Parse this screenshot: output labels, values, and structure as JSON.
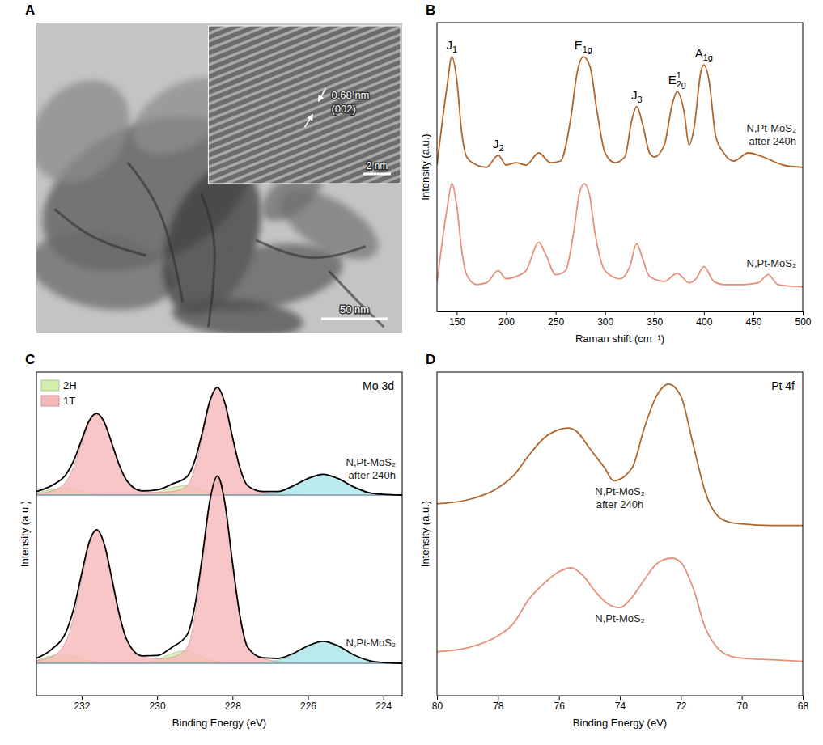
{
  "chart_data": [
    {
      "panel": "A",
      "type": "image",
      "annotations": [
        "0.68 nm",
        "(002)"
      ],
      "inset_scale_bar": "2 nm",
      "scale_bar": "50 nm"
    },
    {
      "panel": "B",
      "type": "line",
      "x_label": "Raman shift (cm⁻¹)",
      "y_label": "Intensity (a.u.)",
      "xlim": [
        130,
        500
      ],
      "xticks": [
        150,
        200,
        250,
        300,
        350,
        400,
        450,
        500
      ],
      "ylim": [
        0,
        1
      ],
      "tick_labels": "x",
      "series": [
        {
          "name": "N,Pt-MoS₂ after 240h",
          "color": "#b0652a",
          "x": [
            130,
            140,
            145,
            150,
            155,
            160,
            170,
            180,
            192,
            200,
            210,
            220,
            233,
            245,
            255,
            265,
            272,
            278,
            285,
            292,
            300,
            310,
            320,
            327,
            332,
            338,
            345,
            350,
            360,
            368,
            373,
            380,
            385,
            390,
            397,
            400,
            405,
            412,
            420,
            430,
            445,
            460,
            480,
            500
          ],
          "values": [
            0.507,
            0.775,
            0.882,
            0.803,
            0.62,
            0.535,
            0.507,
            0.499,
            0.541,
            0.507,
            0.515,
            0.507,
            0.549,
            0.515,
            0.521,
            0.662,
            0.831,
            0.882,
            0.845,
            0.69,
            0.549,
            0.515,
            0.535,
            0.662,
            0.71,
            0.648,
            0.549,
            0.535,
            0.577,
            0.718,
            0.761,
            0.69,
            0.577,
            0.634,
            0.831,
            0.854,
            0.803,
            0.606,
            0.549,
            0.521,
            0.549,
            0.535,
            0.507,
            0.499
          ]
        },
        {
          "name": "N,Pt-MoS₂",
          "color": "#e8907a",
          "x": [
            130,
            140,
            145,
            150,
            155,
            160,
            170,
            180,
            192,
            200,
            210,
            220,
            233,
            240,
            250,
            260,
            268,
            274,
            279,
            284,
            290,
            300,
            315,
            325,
            332,
            338,
            345,
            360,
            373,
            385,
            392,
            400,
            410,
            420,
            440,
            455,
            465,
            475,
            500
          ],
          "values": [
            0.099,
            0.352,
            0.442,
            0.366,
            0.211,
            0.127,
            0.093,
            0.099,
            0.141,
            0.113,
            0.121,
            0.141,
            0.239,
            0.197,
            0.127,
            0.141,
            0.268,
            0.408,
            0.442,
            0.408,
            0.268,
            0.141,
            0.113,
            0.155,
            0.234,
            0.183,
            0.121,
            0.104,
            0.132,
            0.099,
            0.113,
            0.155,
            0.104,
            0.093,
            0.093,
            0.099,
            0.127,
            0.093,
            0.085
          ]
        }
      ],
      "annotations": [
        {
          "text": "J",
          "sub": "1",
          "x": 145
        },
        {
          "text": "J",
          "sub": "2",
          "x": 192
        },
        {
          "text": "E",
          "sub": "1g",
          "x": 278
        },
        {
          "text": "J",
          "sub": "3",
          "x": 332
        },
        {
          "text": "E",
          "sub": "2g",
          "sup": "1",
          "x": 373
        },
        {
          "text": "A",
          "sub": "1g",
          "x": 400
        }
      ]
    },
    {
      "panel": "C",
      "type": "line",
      "title": "Mo 3d",
      "x_label": "Binding Energy (eV)",
      "y_label": "Intensity (a.u.)",
      "xlim": [
        233.2,
        223.5
      ],
      "xticks": [
        232,
        230,
        228,
        226,
        224
      ],
      "ylim": [
        0,
        1
      ],
      "tick_labels": "x",
      "legend": "upper left",
      "x": [
        233.2,
        232.8,
        232.4,
        232.2,
        232.0,
        231.8,
        231.6,
        231.4,
        231.2,
        231.0,
        230.8,
        230.4,
        230.0,
        229.6,
        229.2,
        229.0,
        228.8,
        228.6,
        228.4,
        228.2,
        228.0,
        227.8,
        227.6,
        227.2,
        226.8,
        226.4,
        226.0,
        225.6,
        225.2,
        224.8,
        224.4,
        224.0,
        223.5
      ],
      "components": [
        {
          "name": "2H",
          "color": "#d3edae"
        },
        {
          "name": "1T",
          "color": "#f6b8b8"
        },
        {
          "color": "#a9e4ea"
        }
      ],
      "series": [
        {
          "name": "N,Pt-MoS₂ after 240h",
          "color": "#000000",
          "values": [
            0.631,
            0.649,
            0.686,
            0.729,
            0.791,
            0.85,
            0.872,
            0.845,
            0.78,
            0.712,
            0.664,
            0.633,
            0.636,
            0.654,
            0.678,
            0.726,
            0.814,
            0.911,
            0.953,
            0.904,
            0.799,
            0.703,
            0.649,
            0.631,
            0.631,
            0.648,
            0.671,
            0.684,
            0.671,
            0.646,
            0.628,
            0.622,
            0.62
          ],
          "background": [
            0.62,
            0.62,
            0.62,
            0.62,
            0.62,
            0.62,
            0.62,
            0.62,
            0.62,
            0.62,
            0.62,
            0.62,
            0.62,
            0.62,
            0.62,
            0.62,
            0.62,
            0.62,
            0.62,
            0.62,
            0.62,
            0.62,
            0.62,
            0.62,
            0.62,
            0.62,
            0.62,
            0.62,
            0.62,
            0.62,
            0.62,
            0.62,
            0.62
          ],
          "component_values": [
            [
              0.006,
              0.017,
              0.022,
              0.017,
              0.011,
              0.006,
              0.002,
              0.001,
              0,
              0,
              0,
              0.001,
              0.008,
              0.023,
              0.029,
              0.023,
              0.015,
              0.008,
              0.003,
              0.001,
              0,
              0,
              0,
              0,
              0,
              0,
              0,
              0,
              0,
              0,
              0,
              0,
              0
            ],
            [
              0.005,
              0.012,
              0.044,
              0.092,
              0.16,
              0.224,
              0.25,
              0.224,
              0.16,
              0.092,
              0.044,
              0.012,
              0.008,
              0.011,
              0.029,
              0.083,
              0.179,
              0.283,
              0.33,
              0.283,
              0.179,
              0.083,
              0.029,
              0.009,
              0.003,
              0.002,
              0,
              0,
              0,
              0,
              0,
              0,
              0
            ],
            [
              0,
              0,
              0,
              0,
              0,
              0,
              0,
              0,
              0,
              0,
              0,
              0,
              0,
              0,
              0,
              0,
              0,
              0,
              0,
              0,
              0,
              0,
              0,
              0.002,
              0.008,
              0.026,
              0.051,
              0.064,
              0.051,
              0.026,
              0.008,
              0.002,
              0
            ]
          ]
        },
        {
          "name": "N,Pt-MoS₂",
          "color": "#000000",
          "values": [
            0.116,
            0.143,
            0.201,
            0.273,
            0.377,
            0.475,
            0.513,
            0.468,
            0.362,
            0.25,
            0.172,
            0.123,
            0.124,
            0.15,
            0.189,
            0.276,
            0.431,
            0.603,
            0.679,
            0.594,
            0.411,
            0.245,
            0.15,
            0.117,
            0.115,
            0.13,
            0.154,
            0.168,
            0.154,
            0.127,
            0.109,
            0.102,
            0.1
          ],
          "background": [
            0.1,
            0.1,
            0.1,
            0.1,
            0.1,
            0.1,
            0.1,
            0.1,
            0.1,
            0.1,
            0.1,
            0.1,
            0.1,
            0.1,
            0.1,
            0.1,
            0.1,
            0.1,
            0.1,
            0.1,
            0.1,
            0.1,
            0.1,
            0.1,
            0.1,
            0.1,
            0.1,
            0.1,
            0.1,
            0.1,
            0.1,
            0.1,
            0.1
          ],
          "component_values": [
            [
              0.008,
              0.023,
              0.029,
              0.023,
              0.015,
              0.008,
              0.003,
              0.001,
              0,
              0,
              0,
              0.001,
              0.01,
              0.031,
              0.039,
              0.031,
              0.02,
              0.01,
              0.004,
              0.001,
              0,
              0,
              0,
              0,
              0,
              0,
              0,
              0,
              0,
              0,
              0,
              0,
              0
            ],
            [
              0.008,
              0.02,
              0.072,
              0.15,
              0.262,
              0.367,
              0.41,
              0.367,
              0.262,
              0.15,
              0.072,
              0.022,
              0.014,
              0.019,
              0.05,
              0.145,
              0.311,
              0.493,
              0.575,
              0.493,
              0.311,
              0.145,
              0.05,
              0.015,
              0.006,
              0.003,
              0,
              0,
              0,
              0,
              0,
              0,
              0
            ],
            [
              0,
              0,
              0,
              0,
              0,
              0,
              0,
              0,
              0,
              0,
              0,
              0,
              0,
              0,
              0,
              0,
              0,
              0,
              0,
              0,
              0,
              0,
              0,
              0.002,
              0.009,
              0.027,
              0.054,
              0.068,
              0.054,
              0.027,
              0.009,
              0.002,
              0
            ]
          ]
        }
      ]
    },
    {
      "panel": "D",
      "type": "line",
      "title": "Pt 4f",
      "x_label": "Binding Energy (eV)",
      "y_label": "Intensity (a.u.)",
      "xlim": [
        80,
        68
      ],
      "xticks": [
        80,
        78,
        76,
        74,
        72,
        70,
        68
      ],
      "ylim": [
        0,
        1
      ],
      "tick_labels": "x",
      "series": [
        {
          "name": "N,Pt-MoS₂ after 240h",
          "color": "#b0652a",
          "x": [
            80,
            79,
            78,
            77.5,
            77,
            76.5,
            76,
            75.7,
            75.4,
            75,
            74.5,
            74.2,
            73.6,
            73.2,
            72.8,
            72.4,
            72,
            71.6,
            71.2,
            70.8,
            70.4,
            70,
            69,
            68
          ],
          "values": [
            0.593,
            0.605,
            0.642,
            0.679,
            0.741,
            0.795,
            0.822,
            0.827,
            0.815,
            0.765,
            0.704,
            0.664,
            0.704,
            0.827,
            0.926,
            0.963,
            0.926,
            0.778,
            0.63,
            0.556,
            0.536,
            0.531,
            0.526,
            0.526
          ]
        },
        {
          "name": "N,Pt-MoS₂",
          "color": "#e8907a",
          "x": [
            80,
            79,
            78,
            77.5,
            77,
            76.5,
            76,
            75.6,
            75.2,
            74.8,
            74.4,
            74,
            73.6,
            73.2,
            72.8,
            72.3,
            72,
            71.6,
            71.2,
            70.8,
            70.4,
            70,
            69,
            68
          ],
          "values": [
            0.136,
            0.148,
            0.185,
            0.222,
            0.296,
            0.346,
            0.383,
            0.395,
            0.37,
            0.321,
            0.284,
            0.272,
            0.304,
            0.358,
            0.407,
            0.425,
            0.412,
            0.333,
            0.21,
            0.148,
            0.123,
            0.116,
            0.111,
            0.106
          ]
        }
      ]
    }
  ]
}
